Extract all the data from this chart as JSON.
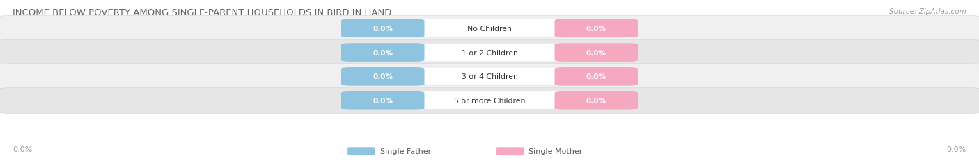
{
  "title": "INCOME BELOW POVERTY AMONG SINGLE-PARENT HOUSEHOLDS IN BIRD IN HAND",
  "source": "Source: ZipAtlas.com",
  "categories": [
    "No Children",
    "1 or 2 Children",
    "3 or 4 Children",
    "5 or more Children"
  ],
  "father_values": [
    0.0,
    0.0,
    0.0,
    0.0
  ],
  "mother_values": [
    0.0,
    0.0,
    0.0,
    0.0
  ],
  "father_color": "#8EC4E0",
  "mother_color": "#F5A8C0",
  "row_bg_even": "#F0F0F0",
  "row_bg_odd": "#E6E6E6",
  "title_color": "#666666",
  "source_color": "#999999",
  "axis_label_color": "#999999",
  "legend_father": "Single Father",
  "legend_mother": "Single Mother",
  "figsize": [
    14.06,
    2.32
  ],
  "dpi": 100
}
